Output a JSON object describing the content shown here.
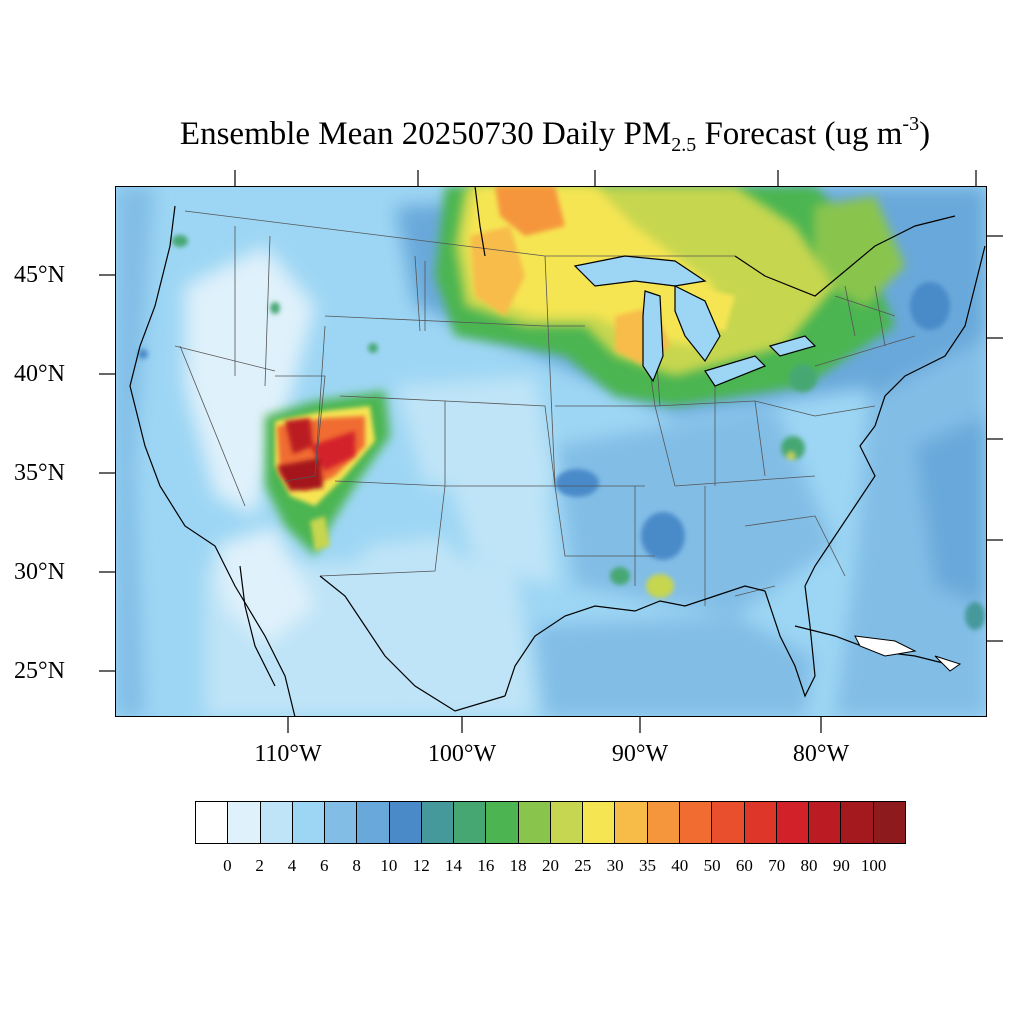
{
  "title": {
    "main": "Ensemble Mean 20250730 Daily PM",
    "subscript": "2.5",
    "suffix": " Forecast (ug m",
    "superscript": "-3",
    "closing": ")"
  },
  "map": {
    "projection": "Lambert conformal, contiguous United States",
    "latitude_labels": [
      "45°N",
      "40°N",
      "35°N",
      "30°N",
      "25°N"
    ],
    "longitude_labels": [
      "110°W",
      "100°W",
      "90°W",
      "80°W"
    ],
    "field": "Daily mean PM2.5 concentration",
    "hotspots": [
      {
        "region": "Four Corners / Arizona",
        "level": "90-100+"
      },
      {
        "region": "Southern Colorado / northern New Mexico",
        "level": "70-90"
      },
      {
        "region": "North Dakota / Manitoba",
        "level": "30-40"
      },
      {
        "region": "Ontario / Great Lakes",
        "level": "25-35"
      },
      {
        "region": "Lower Michigan",
        "level": "25-30"
      },
      {
        "region": "Southern Louisiana",
        "level": "20-25"
      }
    ]
  },
  "colorbar": {
    "levels": [
      "0",
      "2",
      "4",
      "6",
      "8",
      "10",
      "12",
      "14",
      "16",
      "18",
      "20",
      "25",
      "30",
      "35",
      "40",
      "50",
      "60",
      "70",
      "80",
      "90",
      "100"
    ],
    "colors": [
      "#ffffff",
      "#dff1fb",
      "#bfe4f7",
      "#9dd6f4",
      "#82bde6",
      "#69a8da",
      "#4a8ac9",
      "#45999b",
      "#47a773",
      "#4cb551",
      "#89c54d",
      "#c6d650",
      "#f6e553",
      "#f7bc48",
      "#f5963c",
      "#f06c30",
      "#e94f2c",
      "#de3629",
      "#d32129",
      "#bb1b23",
      "#a4191e",
      "#8d1a1c"
    ]
  }
}
